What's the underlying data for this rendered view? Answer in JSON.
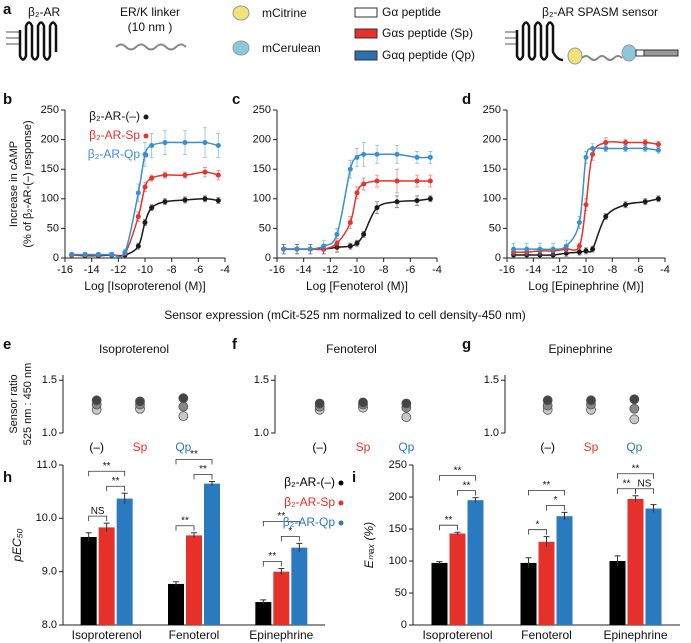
{
  "schematic": {
    "panel": "a",
    "receptor": "β₂-AR",
    "linker": [
      "ER/K linker",
      "(10 nm )"
    ],
    "fluorophores": [
      "mCitrine",
      "mCerulean"
    ],
    "peptides": [
      "Gα peptide",
      "Gαs peptide (Sp)",
      "Gαq peptide (Qp)"
    ],
    "sensor": "β₂-AR SPASM sensor"
  },
  "shared_label": "Sensor expression  (mCit-525 nm normalized to cell density-450 nm)",
  "chart_data": [
    {
      "type": "scatter",
      "panel": "b",
      "xlabel": "Log [Isoproterenol (M)]",
      "ylabel": [
        "Increase in cAMP",
        "(% of β₂-AR-(–) response)"
      ],
      "legend": "upper left",
      "x": [
        -15.5,
        -14.5,
        -13.5,
        -12.5,
        -11.5,
        -10.5,
        -10,
        -9.5,
        -8.5,
        -7,
        -5.5,
        -4.5
      ],
      "xlim": [
        -16,
        -4
      ],
      "xticks": [
        -16,
        -14,
        -12,
        -10,
        -8,
        -6,
        -4
      ],
      "ylim": [
        0,
        250
      ],
      "yticks": [
        0,
        50,
        100,
        150,
        200,
        250
      ],
      "series": [
        {
          "name": "β₂-AR-(–)",
          "color": "#1a1a1a",
          "values": [
            5,
            4,
            4,
            5,
            5,
            20,
            60,
            85,
            95,
            98,
            100,
            97
          ],
          "errors": [
            3,
            3,
            3,
            3,
            3,
            5,
            5,
            5,
            5,
            5,
            5,
            5
          ]
        },
        {
          "name": "β₂-AR-Sp",
          "color": "#e8322b",
          "values": [
            5,
            5,
            5,
            6,
            8,
            70,
            120,
            135,
            140,
            140,
            145,
            140
          ],
          "errors": [
            3,
            3,
            3,
            3,
            3,
            8,
            8,
            5,
            5,
            5,
            8,
            8
          ]
        },
        {
          "name": "β₂-AR-Qp",
          "color": "#3a8fd0",
          "values": [
            6,
            6,
            6,
            6,
            10,
            110,
            175,
            190,
            195,
            195,
            195,
            190
          ],
          "errors": [
            3,
            3,
            3,
            3,
            5,
            15,
            20,
            20,
            20,
            20,
            25,
            20
          ]
        }
      ]
    },
    {
      "type": "scatter",
      "panel": "c",
      "xlabel": "Log [Fenoterol (M)]",
      "x": [
        -15.5,
        -14.5,
        -13.5,
        -12.5,
        -11.5,
        -10.5,
        -10,
        -9.5,
        -8.5,
        -7,
        -5.5,
        -4.5
      ],
      "xlim": [
        -16,
        -4
      ],
      "xticks": [
        -16,
        -14,
        -12,
        -10,
        -8,
        -6,
        -4
      ],
      "ylim": [
        0,
        250
      ],
      "yticks": [
        0,
        50,
        100,
        150,
        200,
        250
      ],
      "series": [
        {
          "color": "#1a1a1a",
          "values": [
            15,
            15,
            15,
            15,
            18,
            20,
            25,
            40,
            85,
            95,
            97,
            100
          ],
          "errors": [
            8,
            8,
            8,
            8,
            8,
            5,
            5,
            5,
            10,
            10,
            8,
            5
          ]
        },
        {
          "color": "#e8322b",
          "values": [
            15,
            15,
            15,
            15,
            25,
            60,
            110,
            125,
            130,
            130,
            130,
            130
          ],
          "errors": [
            8,
            8,
            8,
            8,
            8,
            10,
            10,
            10,
            10,
            20,
            10,
            10
          ]
        },
        {
          "color": "#3a8fd0",
          "values": [
            15,
            15,
            15,
            20,
            40,
            150,
            170,
            175,
            175,
            175,
            170,
            170
          ],
          "errors": [
            8,
            8,
            8,
            10,
            10,
            15,
            15,
            20,
            15,
            15,
            10,
            10
          ]
        }
      ]
    },
    {
      "type": "scatter",
      "panel": "d",
      "xlabel": "Log [Epinephrine (M)]",
      "x": [
        -15.5,
        -14.5,
        -13.5,
        -12.5,
        -11.5,
        -10.5,
        -10,
        -9.5,
        -8.5,
        -7,
        -5.5,
        -4.5
      ],
      "xlim": [
        -16,
        -4
      ],
      "xticks": [
        -16,
        -14,
        -12,
        -10,
        -8,
        -6,
        -4
      ],
      "ylim": [
        0,
        250
      ],
      "yticks": [
        0,
        50,
        100,
        150,
        200,
        250
      ],
      "series": [
        {
          "color": "#1a1a1a",
          "values": [
            5,
            5,
            5,
            5,
            8,
            10,
            12,
            15,
            70,
            90,
            95,
            100
          ],
          "errors": [
            5,
            5,
            5,
            5,
            5,
            5,
            5,
            5,
            5,
            5,
            5,
            5
          ]
        },
        {
          "color": "#e8322b",
          "values": [
            10,
            10,
            12,
            12,
            15,
            20,
            90,
            175,
            195,
            195,
            195,
            192
          ],
          "errors": [
            5,
            5,
            5,
            5,
            5,
            5,
            10,
            10,
            8,
            5,
            5,
            5
          ]
        },
        {
          "color": "#3a8fd0",
          "values": [
            15,
            15,
            15,
            15,
            20,
            60,
            170,
            185,
            185,
            185,
            185,
            182
          ],
          "errors": [
            10,
            10,
            10,
            10,
            10,
            10,
            10,
            8,
            5,
            5,
            5,
            5
          ]
        }
      ]
    },
    {
      "type": "strip",
      "panel": "e",
      "title": "Isoproterenol",
      "ylabel": [
        "Sensor ratio",
        "525 nm : 450 nm"
      ],
      "categories": [
        "(–)",
        "Sp",
        "Qp"
      ],
      "category_colors": [
        "#000000",
        "#e8322b",
        "#2a7ac0"
      ],
      "colors": [
        "#c8c8c8",
        "#888888",
        "#444444"
      ],
      "ylim": [
        1.0,
        1.55
      ],
      "yticks": [
        {
          "value": 1.0,
          "label": "1.0"
        },
        {
          "value": 1.5,
          "label": "1.5"
        }
      ],
      "values": [
        [
          1.22,
          1.27,
          1.31
        ],
        [
          1.23,
          1.27,
          1.3
        ],
        [
          1.16,
          1.25,
          1.33
        ]
      ]
    },
    {
      "type": "strip",
      "panel": "f",
      "title": "Fenoterol",
      "categories": [
        "(–)",
        "Sp",
        "Qp"
      ],
      "category_colors": [
        "#000000",
        "#e8322b",
        "#2a7ac0"
      ],
      "colors": [
        "#c8c8c8",
        "#888888",
        "#444444"
      ],
      "ylim": [
        1.0,
        1.55
      ],
      "yticks": [
        {
          "value": 1.0,
          "label": "1.0"
        },
        {
          "value": 1.5,
          "label": "1.5"
        }
      ],
      "values": [
        [
          1.22,
          1.25,
          1.28
        ],
        [
          1.24,
          1.27,
          1.29
        ],
        [
          1.15,
          1.24,
          1.28
        ]
      ]
    },
    {
      "type": "strip",
      "panel": "g",
      "title": "Epinephrine",
      "categories": [
        "(–)",
        "Sp",
        "Qp"
      ],
      "category_colors": [
        "#000000",
        "#e8322b",
        "#2a7ac0"
      ],
      "colors": [
        "#c8c8c8",
        "#888888",
        "#444444"
      ],
      "ylim": [
        1.0,
        1.55
      ],
      "yticks": [
        {
          "value": 1.0,
          "label": "1.0"
        },
        {
          "value": 1.5,
          "label": "1.5"
        }
      ],
      "values": [
        [
          1.22,
          1.26,
          1.31
        ],
        [
          1.22,
          1.27,
          1.31
        ],
        [
          1.13,
          1.23,
          1.32
        ]
      ]
    },
    {
      "type": "bar",
      "panel": "h",
      "ylabel": "pEC₅₀",
      "legend": "upper right",
      "categories": [
        "Isoproterenol",
        "Fenoterol",
        "Epinephrine"
      ],
      "ylim": [
        8,
        11
      ],
      "yticks": [
        {
          "value": 8,
          "label": "8.0"
        },
        {
          "value": 9,
          "label": "9.0"
        },
        {
          "value": 10,
          "label": "10.0"
        },
        {
          "value": 11,
          "label": "11.0"
        }
      ],
      "series": [
        {
          "name": "β₂-AR-(–)",
          "color": "#000000",
          "values": [
            9.65,
            8.77,
            8.43
          ],
          "errors": [
            0.08,
            0.04,
            0.04
          ]
        },
        {
          "name": "β₂-AR-Sp",
          "color": "#e5312a",
          "values": [
            9.83,
            9.68,
            9.0
          ],
          "errors": [
            0.08,
            0.05,
            0.06
          ]
        },
        {
          "name": "β₂-AR-Qp",
          "color": "#2a7ac0",
          "values": [
            10.37,
            10.65,
            9.45
          ],
          "errors": [
            0.1,
            0.04,
            0.08
          ]
        }
      ],
      "significance": [
        [
          "NS",
          "**",
          "**"
        ],
        [
          "**",
          "**",
          "**"
        ],
        [
          "**",
          "*",
          "**"
        ]
      ]
    },
    {
      "type": "bar",
      "panel": "i",
      "ylabel": "Eₘₐₓ (%)",
      "categories": [
        "Isoproterenol",
        "Fenoterol",
        "Epinephrine"
      ],
      "ylim": [
        0,
        250
      ],
      "yticks": [
        0,
        50,
        100,
        150,
        200,
        250
      ],
      "series": [
        {
          "color": "#000000",
          "values": [
            97,
            97,
            100
          ],
          "errors": [
            2,
            8,
            8
          ]
        },
        {
          "color": "#e5312a",
          "values": [
            143,
            130,
            197
          ],
          "errors": [
            2,
            8,
            5
          ]
        },
        {
          "color": "#2a7ac0",
          "values": [
            195,
            170,
            182
          ],
          "errors": [
            4,
            6,
            6
          ]
        }
      ],
      "significance": [
        [
          "**",
          "**",
          "**"
        ],
        [
          "*",
          "*",
          "**"
        ],
        [
          "**",
          "NS",
          "**"
        ]
      ]
    }
  ]
}
